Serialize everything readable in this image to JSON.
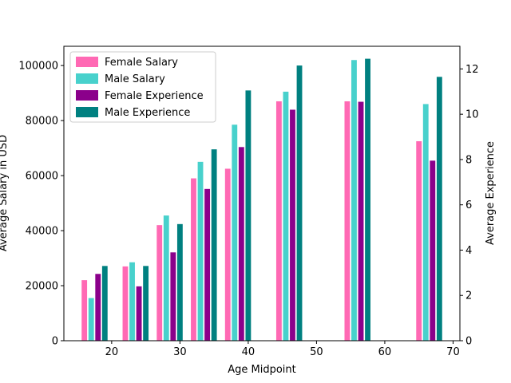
{
  "chart_data": {
    "type": "bar",
    "xlabel": "Age Midpoint",
    "ylabel_left": "Average Salary in USD",
    "ylabel_right": "Average Experience",
    "xlim": [
      13,
      71
    ],
    "ylim_left": [
      0,
      107000
    ],
    "ylim_right": [
      0,
      13.0
    ],
    "x_ticks": [
      20,
      30,
      40,
      50,
      60,
      70
    ],
    "y_ticks_left": [
      0,
      20000,
      40000,
      60000,
      80000,
      100000
    ],
    "y_ticks_right": [
      0,
      2,
      4,
      6,
      8,
      10,
      12
    ],
    "legend_position": "upper-left",
    "grid": false,
    "series": [
      {
        "name": "Female Salary",
        "axis": "left",
        "color": "#ff69b4",
        "x": [
          16.0,
          22.0,
          27.0,
          32.0,
          37.0,
          44.5,
          54.5,
          65.0
        ],
        "values": [
          22000,
          27000,
          42000,
          59000,
          62500,
          87000,
          87000,
          72500
        ]
      },
      {
        "name": "Male Salary",
        "axis": "left",
        "color": "#48d1cc",
        "x": [
          17.0,
          23.0,
          28.0,
          33.0,
          38.0,
          45.5,
          55.5,
          66.0
        ],
        "values": [
          15500,
          28500,
          45500,
          65000,
          78500,
          90500,
          102000,
          86000
        ]
      },
      {
        "name": "Female Experience",
        "axis": "right",
        "color": "#8b008b",
        "x": [
          18.0,
          24.0,
          29.0,
          34.0,
          39.0,
          46.5,
          56.5,
          67.0
        ],
        "values": [
          2.95,
          2.4,
          3.9,
          6.7,
          8.55,
          10.2,
          10.55,
          7.95
        ]
      },
      {
        "name": "Male Experience",
        "axis": "right",
        "color": "#008080",
        "x": [
          19.0,
          25.0,
          30.0,
          35.0,
          40.0,
          47.5,
          57.5,
          68.0
        ],
        "values": [
          3.3,
          3.3,
          5.15,
          8.45,
          11.05,
          12.15,
          12.45,
          11.65
        ]
      }
    ]
  }
}
